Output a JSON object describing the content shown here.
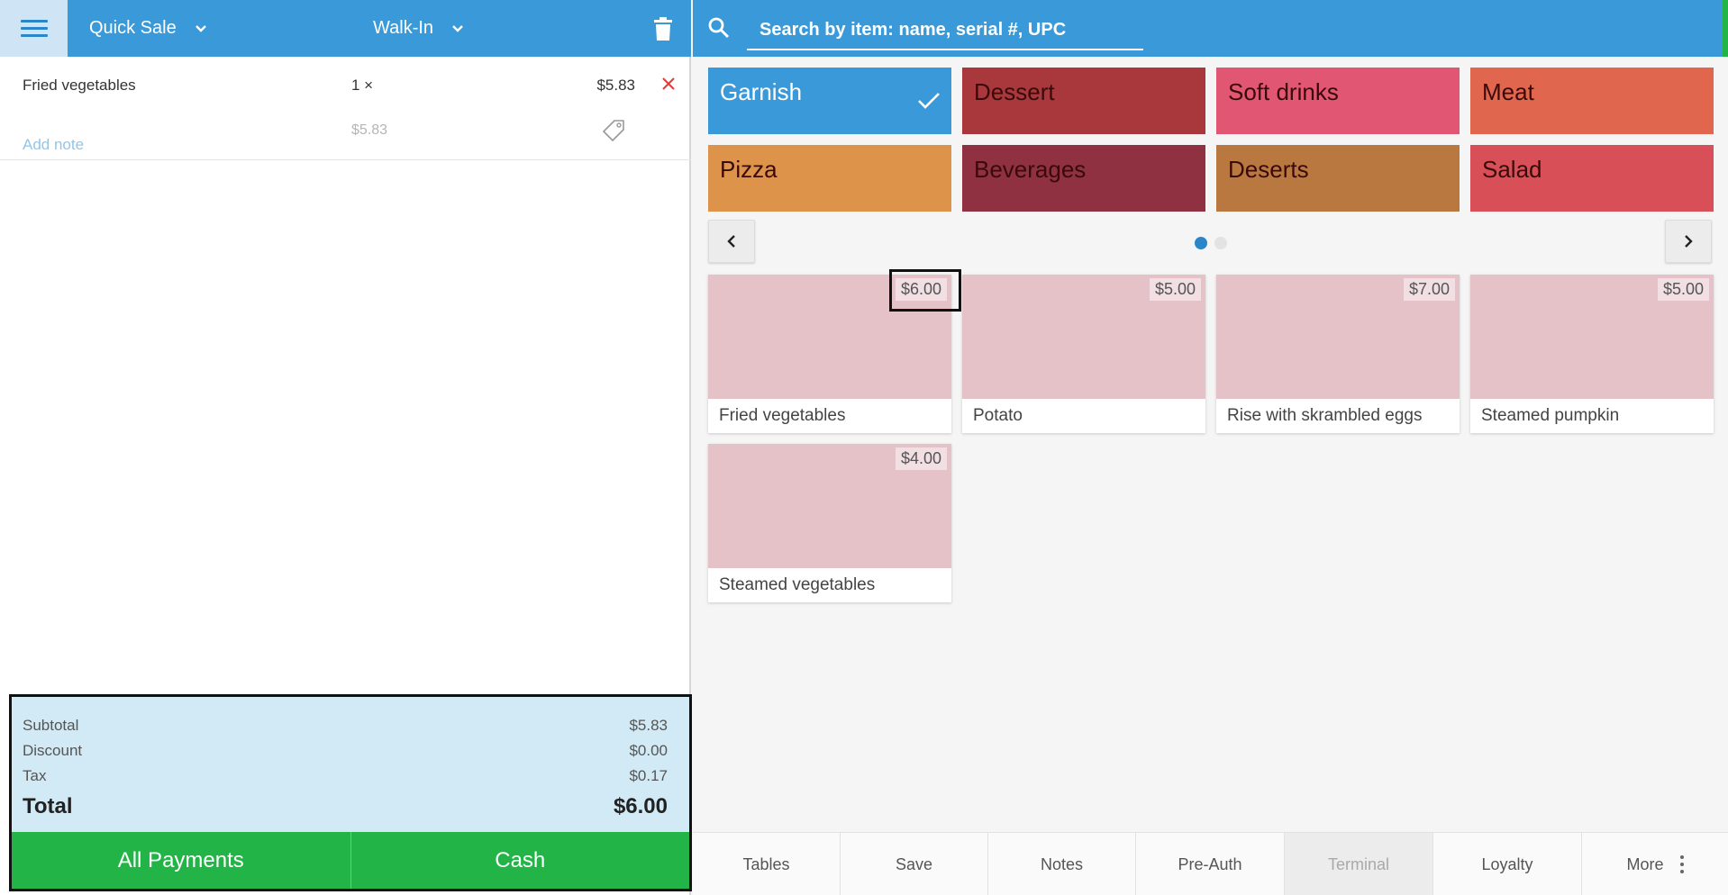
{
  "header": {
    "sale_type": "Quick Sale",
    "customer": "Walk-In"
  },
  "order": {
    "items": [
      {
        "name": "Fried vegetables",
        "qty": "1 ×",
        "price": "$5.83",
        "unit_price": "$5.83",
        "note_label": "Add note"
      }
    ]
  },
  "totals": {
    "subtotal_label": "Subtotal",
    "subtotal": "$5.83",
    "discount_label": "Discount",
    "discount": "$0.00",
    "tax_label": "Tax",
    "tax": "$0.17",
    "total_label": "Total",
    "total": "$6.00"
  },
  "payment": {
    "all_label": "All Payments",
    "cash_label": "Cash"
  },
  "search": {
    "placeholder": "Search by item: name, serial #, UPC"
  },
  "categories": [
    {
      "label": "Garnish",
      "color": "#3a9ad9",
      "selected": true
    },
    {
      "label": "Dessert",
      "color": "#a8383c"
    },
    {
      "label": "Soft drinks",
      "color": "#e05673"
    },
    {
      "label": "Meat",
      "color": "#e0674e"
    },
    {
      "label": "Pizza",
      "color": "#dd944a"
    },
    {
      "label": "Beverages",
      "color": "#8f3141"
    },
    {
      "label": "Deserts",
      "color": "#b8783f"
    },
    {
      "label": "Salad",
      "color": "#d94f57"
    }
  ],
  "pagination": {
    "pages": 2,
    "current": 1
  },
  "products": [
    {
      "name": "Fried vegetables",
      "price": "$6.00"
    },
    {
      "name": "Potato",
      "price": "$5.00"
    },
    {
      "name": "Rise with skrambled eggs",
      "price": "$7.00"
    },
    {
      "name": "Steamed pumpkin",
      "price": "$5.00"
    },
    {
      "name": "Steamed vegetables",
      "price": "$4.00"
    }
  ],
  "bottom_bar": [
    {
      "label": "Tables"
    },
    {
      "label": "Save"
    },
    {
      "label": "Notes"
    },
    {
      "label": "Pre-Auth"
    },
    {
      "label": "Terminal",
      "disabled": true
    },
    {
      "label": "Loyalty"
    },
    {
      "label": "More"
    }
  ],
  "colors": {
    "primary": "#3a9ad9",
    "pay_green": "#22b446",
    "totals_bg": "#d2eaf5",
    "remove_red": "#e53935"
  }
}
